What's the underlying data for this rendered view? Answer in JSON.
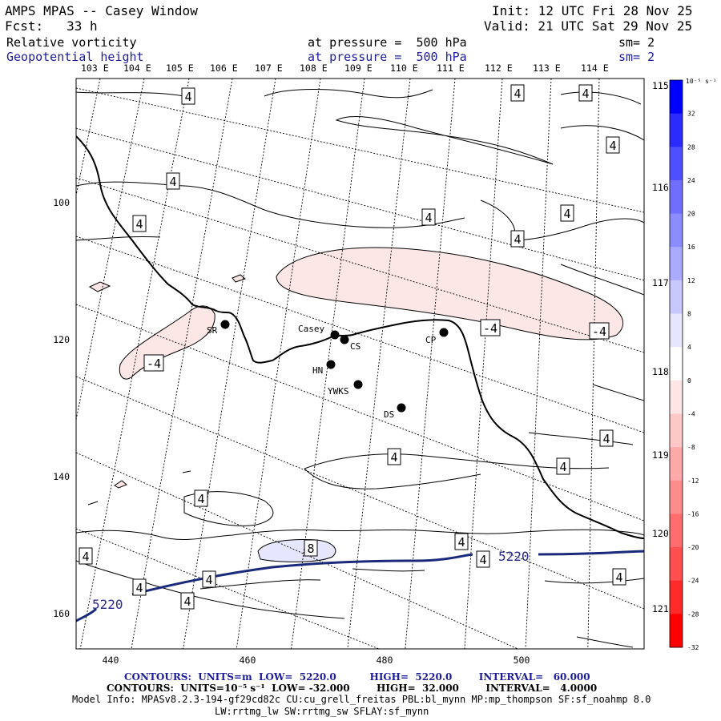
{
  "header": {
    "title": "AMPS MPAS -- Casey Window",
    "init": "Init: 12 UTC Fri 28 Nov 25",
    "forecast": "Fcst:   33 h",
    "valid": "Valid: 21 UTC Sat 29 Nov 25",
    "field1_name": "Relative vorticity",
    "field1_level": "at pressure =  500 hPa",
    "field1_smooth": "sm= 2",
    "field2_name": "Geopotential height",
    "field2_level": "at pressure =  500 hPa",
    "field2_smooth": "sm= 2"
  },
  "map": {
    "lon_labels_top": [
      "103 E",
      "104 E",
      "105 E",
      "106 E",
      "107 E",
      "108 E",
      "109 E",
      "110 E",
      "111 E",
      "112 E",
      "113 E",
      "114 E"
    ],
    "lon_labels_right": [
      "115 E",
      "116 E",
      "117 E",
      "118 E",
      "119 E",
      "120 E",
      "121 E"
    ],
    "x_ticks": [
      "440",
      "460",
      "480",
      "500"
    ],
    "y_ticks": [
      "100",
      "120",
      "140",
      "160"
    ],
    "stations": [
      "SR",
      "Casey",
      "CS",
      "CP",
      "HN",
      "YWKS",
      "DS"
    ],
    "contour_labels": {
      "vort_4": "4",
      "vort_neg4": "-4",
      "vort_8": "8",
      "height_5220": "5220"
    }
  },
  "colorbar": {
    "unit": "10⁻⁵ s⁻¹",
    "labels": [
      "32",
      "28",
      "24",
      "20",
      "16",
      "12",
      "8",
      "4",
      "0",
      "-4",
      "-8",
      "-12",
      "-16",
      "-20",
      "-24",
      "-28",
      "-32"
    ],
    "colors": [
      "#0000ff",
      "#2b2bff",
      "#4f4fff",
      "#6e6eff",
      "#8c8cff",
      "#aaaaff",
      "#c8c8ff",
      "#e6e6ff",
      "#ffffff",
      "#ffe6e6",
      "#ffc8c8",
      "#ffaaaa",
      "#ff8c8c",
      "#ff6e6e",
      "#ff4f4f",
      "#ff2b2b",
      "#ff0000"
    ]
  },
  "footer": {
    "line1": "CONTOURS:  UNITS=m  LOW=  5220.0          HIGH=  5220.0        INTERVAL=   60.000",
    "line2": "CONTOURS:  UNITS=10⁻⁵ s⁻¹  LOW= -32.000        HIGH=  32.000        INTERVAL=   4.0000",
    "line3": "Model Info: MPASv8.2.3-194-gf29cd82c CU:cu_grell_freitas PBL:bl_mynn MP:mp_thompson SF:sf_noahmp 8.0",
    "line4": "LW:rrtmg_lw SW:rrtmg_sw SFLAY:sf_mynn"
  }
}
